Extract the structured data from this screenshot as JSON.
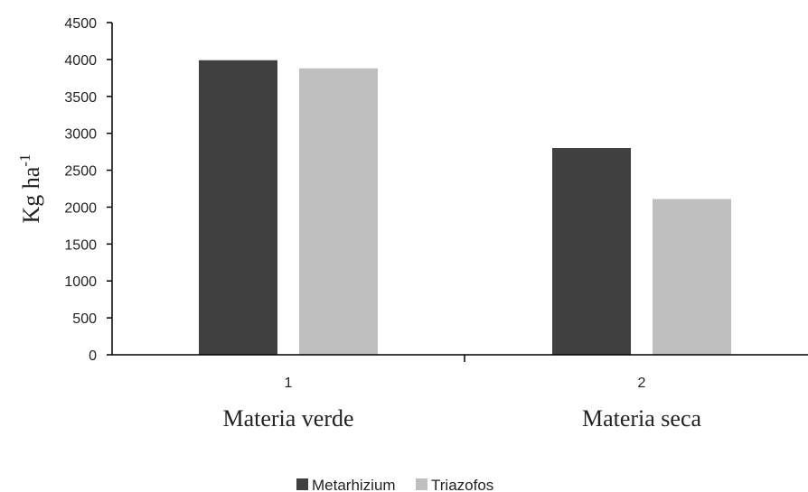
{
  "chart_data": {
    "type": "bar",
    "categories": [
      "1",
      "2"
    ],
    "category_labels": [
      "Materia verde",
      "Materia seca"
    ],
    "series": [
      {
        "name": "Metarhizium",
        "color": "#404040",
        "values": [
          3990,
          2800
        ]
      },
      {
        "name": "Triazofos",
        "color": "#bfbfbf",
        "values": [
          3880,
          2110
        ]
      }
    ],
    "ylabel": "Kg ha",
    "ylabel_superscript": "-1",
    "ylim": [
      0,
      4500
    ],
    "yticks": [
      0,
      500,
      1000,
      1500,
      2000,
      2500,
      3000,
      3500,
      4000,
      4500
    ],
    "grid": false,
    "legend": "bottom"
  }
}
